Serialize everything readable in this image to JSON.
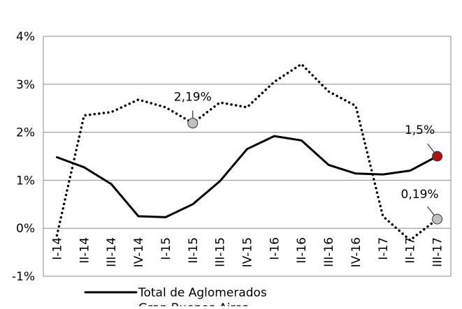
{
  "chart_data": {
    "type": "line",
    "categories": [
      "I-14",
      "II-14",
      "III-14",
      "IV-14",
      "I-15",
      "II-15",
      "III-15",
      "IV-15",
      "I-16",
      "II-16",
      "III-16",
      "IV-16",
      "I-17",
      "II-17",
      "III-17"
    ],
    "series": [
      {
        "name": "Total de Aglomerados",
        "color": "#000000",
        "style": "solid",
        "label_marker_color": "#b01010",
        "values": [
          1.48,
          1.27,
          0.92,
          0.25,
          0.23,
          0.5,
          0.98,
          1.65,
          1.92,
          1.83,
          1.32,
          1.14,
          1.12,
          1.2,
          1.5
        ],
        "value_labels": [
          null,
          null,
          null,
          null,
          null,
          null,
          null,
          null,
          null,
          null,
          null,
          null,
          null,
          null,
          "1,5%"
        ]
      },
      {
        "name": "Gran Buenos Aires",
        "color": "#000000",
        "style": "dotted",
        "label_marker_color": "#c0c0c0",
        "values": [
          -0.15,
          2.35,
          2.42,
          2.68,
          2.52,
          2.19,
          2.62,
          2.52,
          3.05,
          3.42,
          2.85,
          2.55,
          0.25,
          -0.25,
          0.19
        ],
        "value_labels": [
          null,
          null,
          null,
          null,
          null,
          "2,19%",
          null,
          null,
          null,
          null,
          null,
          null,
          null,
          null,
          "0,19%"
        ]
      }
    ],
    "ylim": [
      -1,
      4
    ],
    "yticks": [
      {
        "value": -1,
        "label": "-1%"
      },
      {
        "value": 0,
        "label": "0%"
      },
      {
        "value": 1,
        "label": "1%"
      },
      {
        "value": 2,
        "label": "2%"
      },
      {
        "value": 3,
        "label": "3%"
      },
      {
        "value": 4,
        "label": "4%"
      }
    ],
    "grid": true
  }
}
